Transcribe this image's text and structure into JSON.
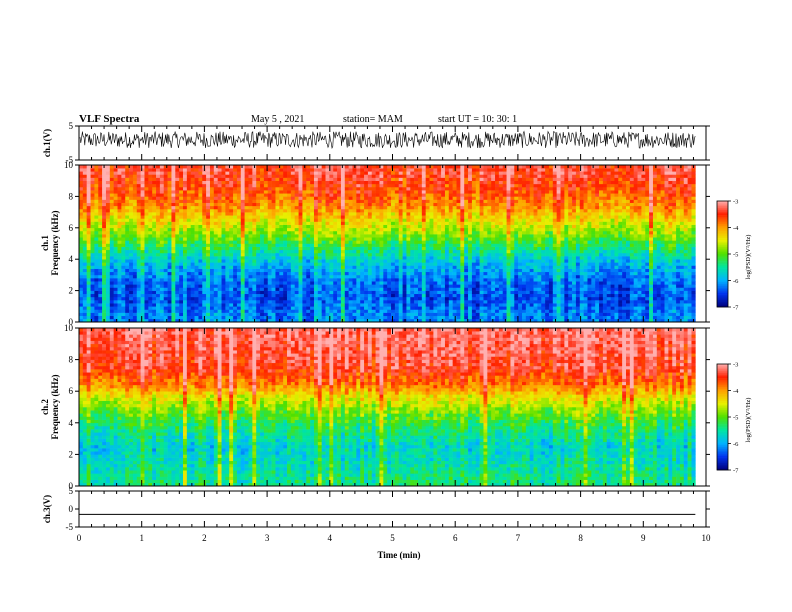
{
  "header": {
    "title": "VLF Spectra",
    "date": "May 5 , 2021",
    "station": "station= MAM",
    "start_ut": "start UT = 10: 30: 1"
  },
  "colors": {
    "spectrogram_palette": [
      "#00007a",
      "#0033ee",
      "#00b4ff",
      "#00e6a0",
      "#50e000",
      "#e8f000",
      "#ffa000",
      "#ff2000",
      "#ffb0b0"
    ]
  },
  "chart_data": [
    {
      "type": "line",
      "panel": "ch1-waveform",
      "ylabel": "ch.1(V)",
      "ylim": [
        -5,
        5
      ],
      "yticks": [
        "5",
        "-5"
      ],
      "xlim": [
        0,
        10
      ],
      "description_values": {
        "x_end_min": 9.83,
        "amplitude_range_v": [
          -1.5,
          3.4
        ]
      }
    },
    {
      "type": "heatmap",
      "panel": "ch1-spectrogram",
      "ylabel": "ch.1\nFrequency (kHz)",
      "ylabel_lines": [
        "ch.1",
        "Frequency (kHz)"
      ],
      "ylim": [
        0,
        10
      ],
      "yticks": [
        "0",
        "2",
        "4",
        "6",
        "8",
        "10"
      ],
      "xlim": [
        0,
        10
      ],
      "x_end_min": 9.83,
      "colorbar": {
        "label": "log(PSD)(V²/Hz)",
        "range": [
          -7,
          -3
        ],
        "ticks": [
          "-3",
          "-4",
          "-5",
          "-6",
          "-7"
        ]
      },
      "log_psd_by_freq_khz": {
        "0.5": -6.2,
        "1.5": -6.4,
        "2.5": -6.3,
        "3.5": -6.0,
        "4.5": -5.5,
        "5.5": -4.9,
        "6.5": -4.4,
        "7.5": -3.9,
        "8.5": -3.6,
        "9.5": -3.4
      }
    },
    {
      "type": "heatmap",
      "panel": "ch2-spectrogram",
      "ylabel": "ch.2\nFrequency (kHz)",
      "ylabel_lines": [
        "ch.2",
        "Frequency (kHz)"
      ],
      "ylim": [
        0,
        10
      ],
      "yticks": [
        "0",
        "2",
        "4",
        "6",
        "8",
        "10"
      ],
      "xlim": [
        0,
        10
      ],
      "x_end_min": 9.83,
      "colorbar": {
        "label": "log(PSD)(V²/Hz)",
        "range": [
          -7,
          -3
        ],
        "ticks": [
          "-3",
          "-4",
          "-5",
          "-6",
          "-7"
        ]
      },
      "log_psd_by_freq_khz": {
        "0.5": -5.4,
        "1.5": -5.6,
        "2.5": -5.7,
        "3.5": -5.4,
        "4.5": -5.0,
        "5.5": -4.5,
        "6.5": -3.8,
        "7.5": -3.4,
        "8.5": -3.3,
        "9.5": -3.2
      }
    },
    {
      "type": "line",
      "panel": "ch3-waveform",
      "ylabel": "ch.3(V)",
      "ylim": [
        -5,
        5
      ],
      "yticks": [
        "5",
        "0",
        "-5"
      ],
      "xlim": [
        0,
        10
      ],
      "constant_value_v": -1.5,
      "xlabel": "Time (min)",
      "xticks": [
        "0",
        "1",
        "2",
        "3",
        "4",
        "5",
        "6",
        "7",
        "8",
        "9",
        "10"
      ]
    }
  ]
}
